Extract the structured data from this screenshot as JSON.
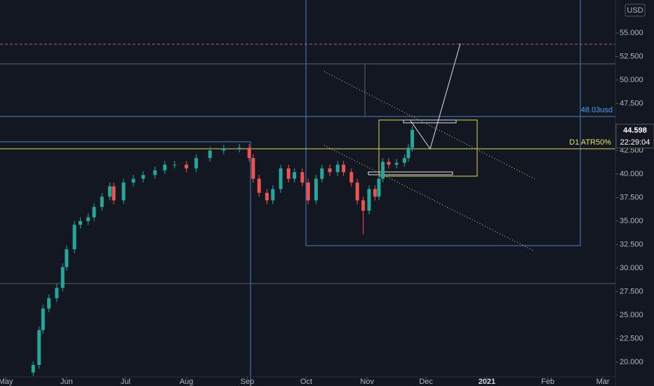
{
  "chart_data": {
    "type": "candlestick",
    "currency": "USD",
    "last_price": "44.598",
    "countdown": "22:29:04",
    "annotations": [
      "48.03usd",
      "D1 ATR50%"
    ],
    "up_color": "#26a69a",
    "down_color": "#ef5350",
    "x": [
      14,
      17,
      19,
      22,
      26,
      29,
      31,
      35,
      38,
      42,
      45,
      49,
      53,
      55,
      60,
      65,
      70,
      76,
      81,
      86,
      92,
      97,
      104,
      111,
      119,
      124,
      126,
      129,
      133,
      136,
      140,
      144,
      147,
      151,
      154,
      158,
      161,
      165,
      169,
      172,
      176,
      179,
      182,
      185,
      188,
      190,
      192,
      195,
      199,
      203,
      205,
      207
    ],
    "open": [
      18.9,
      19.7,
      23.4,
      25.7,
      26.8,
      27.9,
      30.1,
      32,
      34.6,
      35,
      35.4,
      36.5,
      37.6,
      38.7,
      37.2,
      39.1,
      39.5,
      39.9,
      40.4,
      41,
      41,
      40.6,
      41.7,
      42.5,
      42.7,
      42.8,
      41.7,
      39.5,
      38,
      37.2,
      38.4,
      40.6,
      39.5,
      40.2,
      39.1,
      37.2,
      39.5,
      40.6,
      40.2,
      41,
      40.2,
      39.1,
      37.2,
      36.1,
      38.4,
      37.6,
      39.5,
      41.3,
      41,
      41.2,
      41.7,
      42.8
    ],
    "high": [
      20.1,
      23.8,
      26.1,
      27.2,
      28.3,
      30.5,
      32.4,
      35.0,
      35.4,
      35.8,
      36.9,
      38.0,
      39.1,
      39.1,
      39.5,
      39.9,
      40.3,
      40.8,
      41.4,
      41.4,
      41.4,
      42.1,
      42.9,
      43.1,
      43.2,
      43.2,
      42.1,
      39.9,
      38.4,
      38.8,
      41.0,
      41.0,
      40.6,
      40.6,
      39.5,
      39.9,
      41.0,
      41.0,
      41.4,
      41.4,
      40.6,
      39.5,
      37.6,
      38.8,
      38.8,
      39.9,
      41.7,
      41.7,
      41.6,
      42.1,
      43.2,
      45.1
    ],
    "low": [
      18.5,
      19.3,
      23.0,
      25.3,
      26.4,
      27.5,
      29.7,
      31.6,
      34.2,
      34.6,
      35.0,
      36.1,
      37.2,
      36.8,
      36.8,
      38.7,
      39.1,
      39.5,
      40.0,
      40.6,
      40.2,
      40.2,
      41.3,
      42.1,
      42.3,
      41.3,
      39.1,
      37.6,
      36.8,
      36.8,
      38.0,
      39.1,
      39.1,
      38.7,
      36.8,
      36.8,
      39.1,
      39.8,
      39.8,
      39.8,
      38.7,
      36.8,
      33.6,
      35.7,
      37.2,
      37.2,
      39.1,
      40.6,
      40.6,
      40.8,
      41.3,
      42.4
    ],
    "close": [
      19.7,
      23.4,
      25.7,
      26.8,
      27.9,
      30.1,
      32,
      34.6,
      35,
      35.4,
      36.5,
      37.6,
      38.7,
      37.2,
      39.1,
      39.5,
      39.9,
      40.4,
      41,
      41,
      40.6,
      41.7,
      42.5,
      42.7,
      42.8,
      41.7,
      39.5,
      38,
      37.2,
      38.4,
      40.6,
      39.5,
      40.2,
      39.1,
      37.2,
      39.5,
      40.6,
      40.2,
      41,
      40.2,
      39.1,
      37.2,
      36.1,
      38.4,
      37.6,
      39.5,
      41.3,
      41,
      41.2,
      41.7,
      42.8,
      44.7
    ],
    "xlim": [
      -2.9,
      310.4
    ],
    "xticks": [
      {
        "value": 0,
        "label": "May"
      },
      {
        "value": 31,
        "label": "Jun"
      },
      {
        "value": 61,
        "label": "Jul"
      },
      {
        "value": 92,
        "label": "Aug"
      },
      {
        "value": 123,
        "label": "Sep"
      },
      {
        "value": 153,
        "label": "Oct"
      },
      {
        "value": 184,
        "label": "Nov"
      },
      {
        "value": 214,
        "label": "Dec"
      },
      {
        "value": 245,
        "label": "2021"
      },
      {
        "value": 276,
        "label": "Feb"
      },
      {
        "value": 304,
        "label": "Mar"
      }
    ],
    "ylim": [
      18.43,
      58.51
    ],
    "yticks": [
      {
        "value": 20,
        "label": "20.000"
      },
      {
        "value": 22.5,
        "label": "22.500"
      },
      {
        "value": 25,
        "label": "25.000"
      },
      {
        "value": 27.5,
        "label": "27.500"
      },
      {
        "value": 30,
        "label": "30.000"
      },
      {
        "value": 32.5,
        "label": "32.500"
      },
      {
        "value": 35,
        "label": "35.000"
      },
      {
        "value": 37.5,
        "label": "37.500"
      },
      {
        "value": 40,
        "label": "40.000"
      },
      {
        "value": 42.5,
        "label": "42.500"
      },
      {
        "value": 45,
        "label": "45.000"
      },
      {
        "value": 47.5,
        "label": "47.500"
      },
      {
        "value": 50,
        "label": "50.000"
      },
      {
        "value": 52.5,
        "label": "52.500"
      },
      {
        "value": 55,
        "label": "55.000"
      }
    ]
  }
}
